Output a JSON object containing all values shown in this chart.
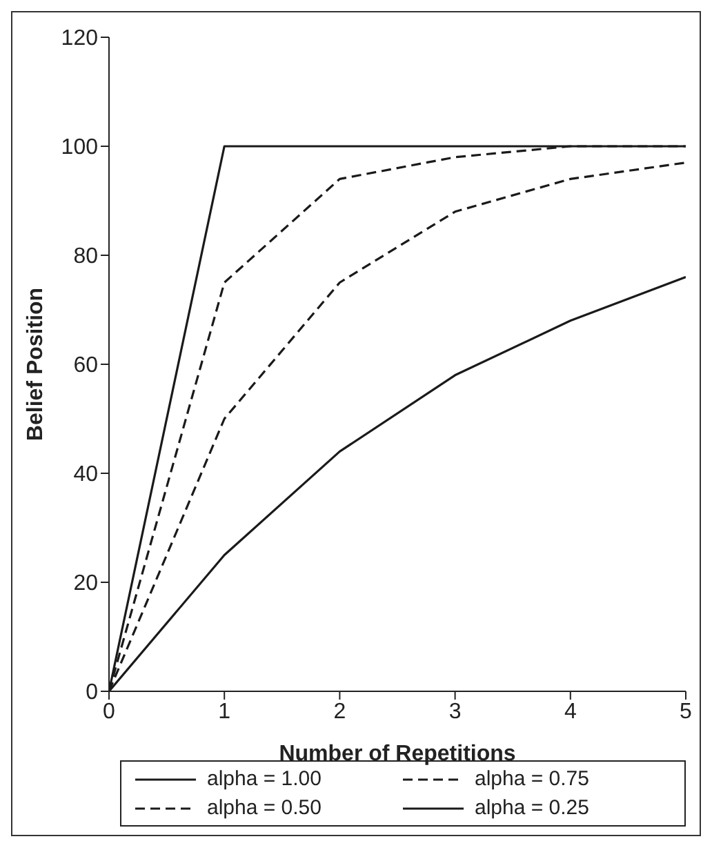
{
  "chart_data": {
    "type": "line",
    "xlabel": "Number of Repetitions",
    "ylabel": "Belief Position",
    "x": [
      0,
      1,
      2,
      3,
      4,
      5
    ],
    "series": [
      {
        "name": "alpha = 1.00",
        "color": "#1a1a1a",
        "line_style": "solid",
        "values": [
          0,
          100,
          100,
          100,
          100,
          100
        ]
      },
      {
        "name": "alpha = 0.75",
        "color": "#1a1a1a",
        "line_style": "dashed",
        "values": [
          0,
          75,
          94,
          98,
          100,
          100
        ]
      },
      {
        "name": "alpha = 0.50",
        "color": "#1a1a1a",
        "line_style": "dashed",
        "values": [
          0,
          50,
          75,
          88,
          94,
          97
        ]
      },
      {
        "name": "alpha = 0.25",
        "color": "#1a1a1a",
        "line_style": "solid",
        "values": [
          0,
          25,
          44,
          58,
          68,
          76
        ]
      }
    ],
    "xlim": [
      0,
      5
    ],
    "xticks": [
      0,
      1,
      2,
      3,
      4,
      5
    ],
    "ylim": [
      0,
      120
    ],
    "yticks": [
      0,
      20,
      40,
      60,
      80,
      100,
      120
    ],
    "grid": false,
    "legend": "bottom"
  }
}
